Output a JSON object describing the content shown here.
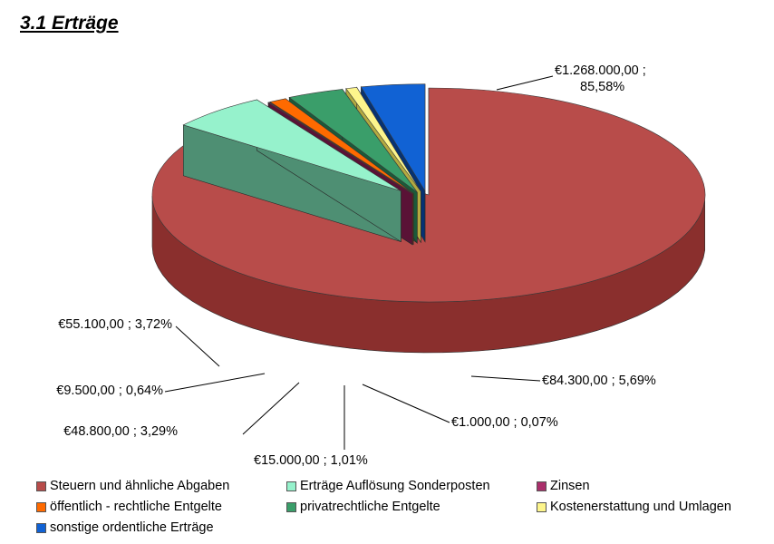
{
  "page": {
    "heading": "3.1 Erträge"
  },
  "chart_data": {
    "type": "pie",
    "title": "",
    "slices": [
      {
        "name": "Steuern und ähnliche Abgaben",
        "value": 1268000.0,
        "percent": 85.58,
        "label": "€1.268.000,00 ;\n85,58%",
        "color": "#b84c4a",
        "side": "#8a2f2d",
        "dark": "#4e1c1b"
      },
      {
        "name": "Erträge Auflösung Sonderposten",
        "value": 84300.0,
        "percent": 5.69,
        "label": "€84.300,00 ; 5,69%",
        "color": "#96f2cc",
        "side": "#74caa5",
        "dark": "#4e8f73"
      },
      {
        "name": "Zinsen",
        "value": 1000.0,
        "percent": 0.07,
        "label": "€1.000,00 ; 0,07%",
        "color": "#aa2f6b",
        "side": "#7c1c4c",
        "dark": "#5a1236"
      },
      {
        "name": "öffentlich - rechtliche Entgelte",
        "value": 15000.0,
        "percent": 1.01,
        "label": "€15.000,00 ; 1,01%",
        "color": "#ff6a00",
        "side": "#cc4f00",
        "dark": "#8f3800"
      },
      {
        "name": "privatrechtliche Entgelte",
        "value": 48800.0,
        "percent": 3.29,
        "label": "€48.800,00 ; 3,29%",
        "color": "#3a9e6a",
        "side": "#2a7d51",
        "dark": "#1b5a39"
      },
      {
        "name": "Kostenerstattung und Umlagen",
        "value": 9500.0,
        "percent": 0.64,
        "label": "€9.500,00 ; 0,64%",
        "color": "#fdf58c",
        "side": "#e3d964",
        "dark": "#b3aa40"
      },
      {
        "name": "sonstige ordentliche Erträge",
        "value": 55100.0,
        "percent": 3.72,
        "label": "€55.100,00 ; 3,72%",
        "color": "#1162d4",
        "side": "#0a47a3",
        "dark": "#063273"
      }
    ],
    "legend_position": "bottom",
    "style": "3d-exploded"
  }
}
